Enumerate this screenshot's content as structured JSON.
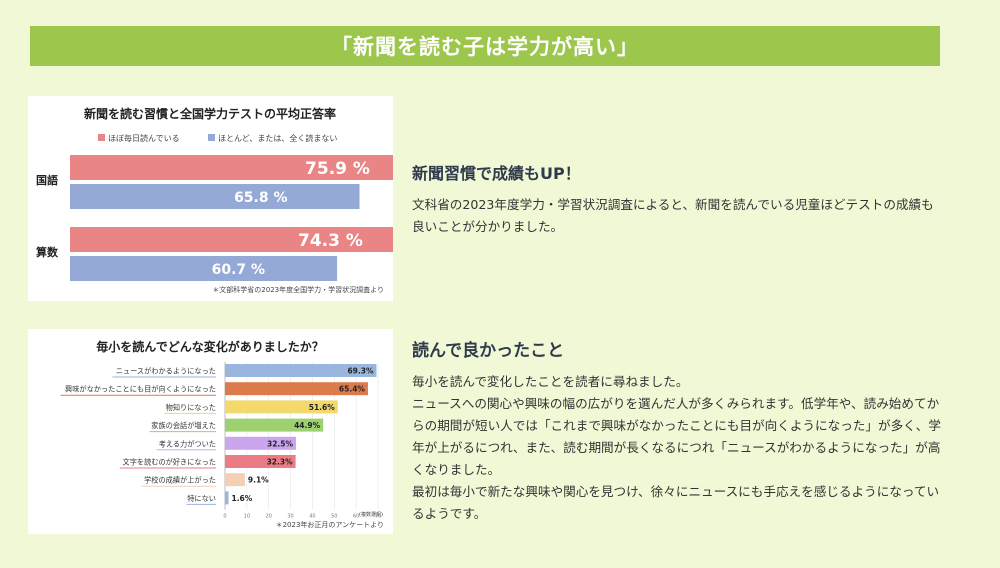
{
  "banner": {
    "title": "「新聞を読む子は学力が高い」"
  },
  "charts": [
    {
      "type": "bar",
      "title": "新聞を読む習慣と全国学力テストの平均正答率",
      "categories": [
        "国語",
        "算数"
      ],
      "series": [
        {
          "name": "ほぼ毎日読んでいる",
          "values": [
            75.9,
            74.3
          ],
          "labels": [
            "75.9 %",
            "74.3 %"
          ],
          "color": "#e98585"
        },
        {
          "name": "ほとんど、または、全く読まない",
          "values": [
            65.8,
            60.7
          ],
          "labels": [
            "65.8 %",
            "60.7 %"
          ],
          "color": "#94a9d6"
        }
      ],
      "xlim": [
        0,
        80
      ],
      "source": "＊文部科学省の2023年度全国学力・学習状況調査より"
    },
    {
      "type": "bar",
      "title": "毎小を読んでどんな変化がありましたか？",
      "categories": [
        "ニュースがわかるようになった",
        "興味がなかったことにも目が向くようになった",
        "物知りになった",
        "家族の会話が増えた",
        "考える力がついた",
        "文字を読むのが好きになった",
        "学校の成績が上がった",
        "特にない"
      ],
      "values": [
        69.3,
        65.4,
        51.6,
        44.9,
        32.5,
        32.3,
        9.1,
        1.6
      ],
      "labels": [
        "69.3%",
        "65.4%",
        "51.6%",
        "44.9%",
        "32.5%",
        "32.3%",
        "9.1%",
        "1.6%"
      ],
      "colors": [
        "#9ab6df",
        "#dd7a4c",
        "#f3d86b",
        "#9dd070",
        "#cba6ef",
        "#eb7c86",
        "#f3cfb5",
        "#9ab6df"
      ],
      "ticks": [
        "0",
        "10",
        "20",
        "30",
        "40",
        "50",
        "60",
        "70"
      ],
      "xlim": [
        0,
        70
      ],
      "note": "(複数選択)",
      "source": "＊2023年お正月のアンケートより"
    }
  ],
  "section1": {
    "heading": "新聞習慣で成績もUP！",
    "body": "文科省の2023年度学力・学習状況調査によると、新聞を読んでいる児童ほどテストの成績も良いことが分かりました。"
  },
  "section2": {
    "heading": "読んで良かったこと",
    "lines": [
      "毎小を読んで変化したことを読者に尋ねました。",
      "ニュースへの関心や興味の幅の広がりを選んだ人が多くみられます。低学年や、読み始めてからの期間が短い人では「これまで興味がなかったことにも目が向くようになった」が多く、学年が上がるにつれ、また、読む期間が長くなるにつれ「ニュースがわかるようになった」が高くなりました。",
      "最初は毎小で新たな興味や関心を見つけ、徐々にニュースにも手応えを感じるようになっているようです。"
    ]
  }
}
